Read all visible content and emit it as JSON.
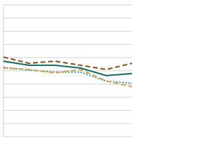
{
  "chart_data": {
    "type": "line",
    "categories": [
      null,
      null,
      null,
      null,
      null,
      null
    ],
    "series": [
      {
        "color": "#8c5a24",
        "dash": "dashed",
        "values": [
          60.4,
          55.7,
          57.3,
          54.2,
          51.0,
          55.7
        ]
      },
      {
        "color": "#1f6e6e",
        "dash": "solid",
        "values": [
          57.3,
          54.2,
          54.2,
          52.1,
          46.4,
          47.9
        ]
      },
      {
        "color": "#3f9c98",
        "dash": "dotted",
        "values": [
          52.6,
          50.5,
          49.0,
          49.0,
          42.2,
          40.6
        ]
      },
      {
        "color": "#d8a35e",
        "dash": "dashed",
        "values": [
          52.1,
          51.0,
          48.4,
          51.0,
          42.2,
          38.0
        ]
      }
    ],
    "ylim": [
      0,
      100
    ],
    "yticks": [
      0,
      10,
      20,
      30,
      40,
      50,
      60,
      70,
      80,
      90,
      100
    ],
    "grid": true
  }
}
